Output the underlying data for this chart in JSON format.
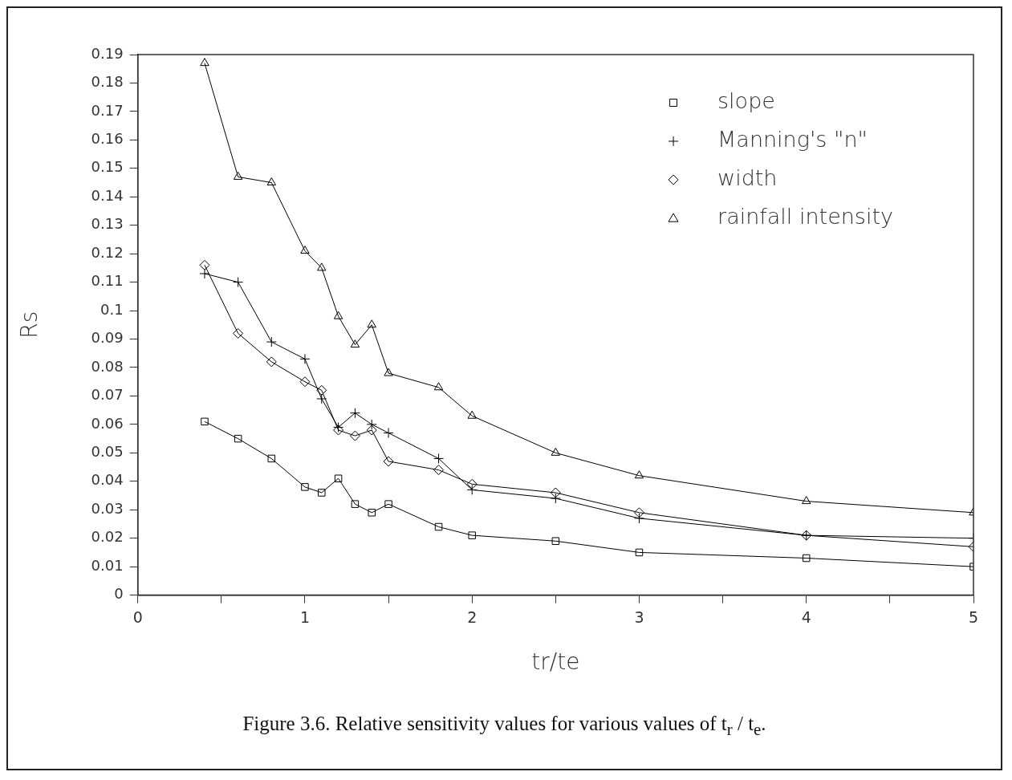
{
  "chart_data": {
    "type": "line",
    "xlabel": "tr/te",
    "ylabel": "Rs",
    "annotations": [
      "Figure 3.6.  Relative sensitivity values for various values of t$_{r}$ / t$_{e}$."
    ],
    "x": [
      0.4,
      0.6,
      0.8,
      1.0,
      1.1,
      1.2,
      1.3,
      1.4,
      1.5,
      1.8,
      2.0,
      2.5,
      3,
      4,
      5
    ],
    "series": [
      {
        "name": "slope",
        "color": "#000000",
        "marker": "square",
        "values": [
          0.061,
          0.055,
          0.048,
          0.038,
          0.036,
          0.041,
          0.032,
          0.029,
          0.032,
          0.024,
          0.021,
          0.019,
          0.015,
          0.013,
          0.01
        ]
      },
      {
        "name": "Manning's \"n\"",
        "color": "#000000",
        "marker": "cross",
        "values": [
          0.113,
          0.11,
          0.089,
          0.083,
          0.069,
          0.059,
          0.064,
          0.06,
          0.057,
          0.048,
          0.037,
          0.034,
          0.027,
          0.021,
          0.02
        ]
      },
      {
        "name": "width",
        "color": "#000000",
        "marker": "diamond",
        "values": [
          0.116,
          0.092,
          0.082,
          0.075,
          0.072,
          0.058,
          0.056,
          0.058,
          0.047,
          0.044,
          0.039,
          0.036,
          0.029,
          0.021,
          0.017
        ]
      },
      {
        "name": "rainfall intensity",
        "color": "#000000",
        "marker": "triangle",
        "values": [
          0.187,
          0.147,
          0.145,
          0.121,
          0.115,
          0.098,
          0.088,
          0.095,
          0.078,
          0.073,
          0.063,
          0.05,
          0.042,
          0.033,
          0.029
        ]
      }
    ],
    "xlim": [
      0,
      5
    ],
    "xticks": [
      0,
      {
        "value": 0.5,
        "label": null
      },
      1,
      {
        "value": 1.5,
        "label": null
      },
      2,
      {
        "value": 2.5,
        "label": null
      },
      3,
      {
        "value": 3.5,
        "label": null
      },
      4,
      {
        "value": 4.5,
        "label": null
      },
      5
    ],
    "ylim": [
      0,
      0.19
    ],
    "yticks": [
      0,
      0.01,
      0.02,
      0.03,
      0.04,
      0.05,
      0.06,
      0.07,
      0.08,
      0.09,
      0.1,
      0.11,
      0.12,
      0.13,
      0.14,
      0.15,
      0.16,
      0.17,
      0.18,
      0.19
    ],
    "grid": false,
    "legend": "top right",
    "line_style": "solid"
  }
}
